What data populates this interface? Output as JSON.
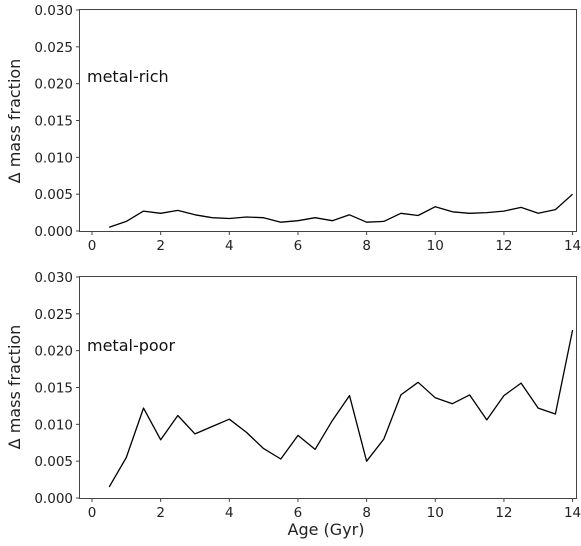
{
  "chart_data": [
    {
      "type": "line",
      "panel_label": "metal-rich",
      "xlabel": "",
      "ylabel": "Δ mass fraction",
      "xlim": [
        -0.35,
        14.1
      ],
      "ylim": [
        0,
        0.03
      ],
      "xticks": [
        "0",
        "2",
        "4",
        "6",
        "8",
        "10",
        "12",
        "14"
      ],
      "yticks": [
        "0.000",
        "0.005",
        "0.010",
        "0.015",
        "0.020",
        "0.025",
        "0.030"
      ],
      "grid": false,
      "series": [
        {
          "color": "#000000",
          "x": [
            0.5,
            1.0,
            1.5,
            2.0,
            2.5,
            3.0,
            3.5,
            4.0,
            4.5,
            5.0,
            5.5,
            6.0,
            6.5,
            7.0,
            7.5,
            8.0,
            8.5,
            9.0,
            9.5,
            10.0,
            10.5,
            11.0,
            11.5,
            12.0,
            12.5,
            13.0,
            13.5,
            14.0
          ],
          "y": [
            0.0005,
            0.0013,
            0.0027,
            0.0024,
            0.0028,
            0.0022,
            0.0018,
            0.0017,
            0.0019,
            0.0018,
            0.0012,
            0.0014,
            0.0018,
            0.0014,
            0.0022,
            0.0012,
            0.0013,
            0.0024,
            0.0021,
            0.0033,
            0.0026,
            0.0024,
            0.0025,
            0.0027,
            0.0032,
            0.0024,
            0.0029,
            0.005
          ]
        }
      ]
    },
    {
      "type": "line",
      "panel_label": "metal-poor",
      "xlabel": "Age (Gyr)",
      "ylabel": "Δ mass fraction",
      "xlim": [
        -0.35,
        14.1
      ],
      "ylim": [
        0,
        0.03
      ],
      "xticks": [
        "0",
        "2",
        "4",
        "6",
        "8",
        "10",
        "12",
        "14"
      ],
      "yticks": [
        "0.000",
        "0.005",
        "0.010",
        "0.015",
        "0.020",
        "0.025",
        "0.030"
      ],
      "grid": false,
      "series": [
        {
          "color": "#000000",
          "x": [
            0.5,
            1.0,
            1.5,
            2.0,
            2.5,
            3.0,
            3.5,
            4.0,
            4.5,
            5.0,
            5.5,
            6.0,
            6.5,
            7.0,
            7.5,
            8.0,
            8.5,
            9.0,
            9.5,
            10.0,
            10.5,
            11.0,
            11.5,
            12.0,
            12.5,
            13.0,
            13.5,
            14.0
          ],
          "y": [
            0.0015,
            0.0055,
            0.0122,
            0.0079,
            0.0112,
            0.0087,
            0.0097,
            0.0107,
            0.0089,
            0.0067,
            0.0053,
            0.0085,
            0.0066,
            0.0105,
            0.0139,
            0.005,
            0.008,
            0.014,
            0.0157,
            0.0136,
            0.0128,
            0.014,
            0.0106,
            0.0139,
            0.0156,
            0.0122,
            0.0114,
            0.0228
          ]
        }
      ]
    }
  ]
}
